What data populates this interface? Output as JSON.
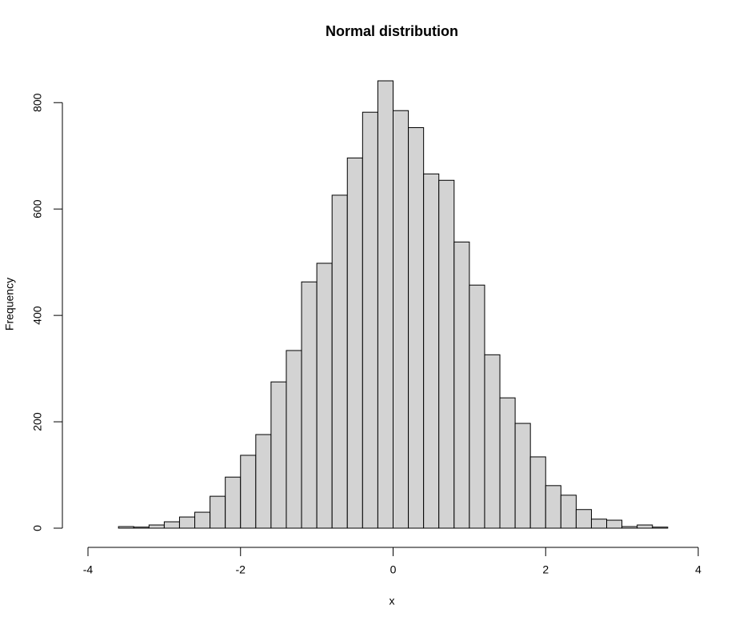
{
  "chart_data": {
    "type": "histogram",
    "title": "Normal distribution",
    "x_label": "x",
    "y_label": "Frequency",
    "bins": [
      -4,
      -3.8,
      -3.6,
      -3.4,
      -3.2,
      -3,
      -2.8,
      -2.6,
      -2.4,
      -2.2,
      -2,
      -1.8,
      -1.6,
      -1.4,
      -1.2,
      -1,
      -0.8,
      -0.6,
      -0.4,
      -0.2,
      0,
      0.2,
      0.4,
      0.6,
      0.8,
      1,
      1.2,
      1.4,
      1.6,
      1.8,
      2,
      2.2,
      2.4,
      2.6,
      2.8,
      3,
      3.2,
      3.4,
      3.6,
      3.8,
      4
    ],
    "values": [
      0,
      0,
      3,
      2,
      6,
      12,
      21,
      30,
      60,
      96,
      137,
      176,
      275,
      334,
      463,
      498,
      626,
      696,
      782,
      841,
      785,
      753,
      666,
      654,
      538,
      457,
      326,
      245,
      197,
      134,
      80,
      62,
      35,
      17,
      15,
      3,
      6,
      2,
      0,
      0
    ],
    "color": "#d3d3d3",
    "xlim": [
      -4,
      4
    ],
    "xticks": [
      -4,
      -2,
      0,
      2,
      4
    ],
    "ylim": [
      0,
      841
    ],
    "yticks": [
      0,
      200,
      400,
      600,
      800
    ]
  }
}
